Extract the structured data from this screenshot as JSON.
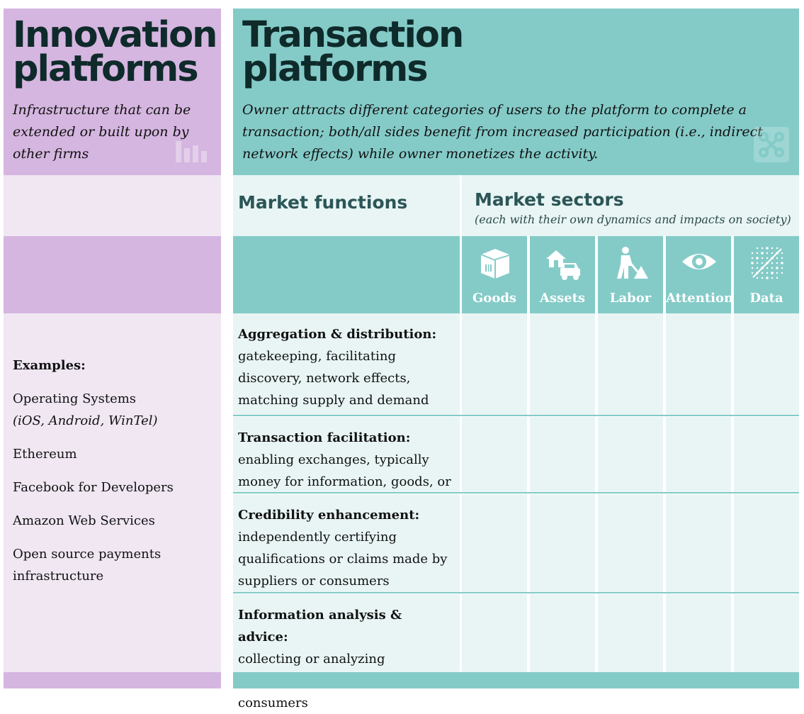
{
  "innovation": {
    "title_line1": "Innovation",
    "title_line2": "platforms",
    "description": "Infrastructure that can be extended or built upon by other firms",
    "examples_heading": "Examples:",
    "examples": [
      {
        "main": "Operating Systems",
        "sub": "(iOS, Android, WinTel)"
      },
      {
        "main": "Ethereum",
        "sub": ""
      },
      {
        "main": "Facebook for Developers",
        "sub": ""
      },
      {
        "main": "Amazon Web Services",
        "sub": ""
      },
      {
        "main": "Open source payments infrastructure",
        "sub": ""
      }
    ],
    "icon": "bar-chart-icon"
  },
  "transaction": {
    "title_line1": "Transaction",
    "title_line2": "platforms",
    "description": "Owner attracts different categories of users to the platform to complete a transaction; both/all sides benefit from increased participation (i.e., indirect network effects) while owner monetizes the activity.",
    "icon": "network-nodes-icon"
  },
  "market_functions": {
    "heading": "Market functions",
    "items": [
      {
        "title": "Aggregation & distribution:",
        "body": "gatekeeping, facilitating discovery, network effects, matching supply and demand"
      },
      {
        "title": "Transaction facilitation:",
        "body": "enabling exchanges,  typically money for information, goods, or services"
      },
      {
        "title": "Credibility enhancement:",
        "body": "independently certifying qualifications or claims made by suppliers or consumers"
      },
      {
        "title": "Information analysis & advice:",
        "body": "collecting or analyzing information about suppliers or consumers"
      }
    ]
  },
  "market_sectors": {
    "heading": "Market sectors",
    "subheading": "(each with their own dynamics and impacts on society)",
    "sectors": [
      {
        "label": "Goods",
        "icon": "box-icon"
      },
      {
        "label": "Assets",
        "icon": "house-car-icon"
      },
      {
        "label": "Labor",
        "icon": "worker-shovel-icon"
      },
      {
        "label": "Attention",
        "icon": "eye-icon"
      },
      {
        "label": "Data",
        "icon": "data-dots-icon"
      }
    ]
  },
  "colors": {
    "innovation_dark": "#d5b6e0",
    "innovation_light": "#f0e7f3",
    "transaction_dark": "#84cbc8",
    "transaction_light": "#e8f5f4",
    "heading_text": "#2c5557"
  }
}
